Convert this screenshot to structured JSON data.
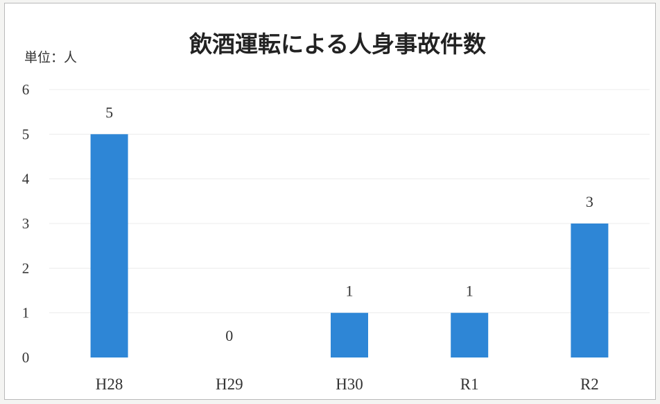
{
  "chart_data": {
    "type": "bar",
    "title": "飲酒運転による人身事故件数",
    "unit_label": "単位：人",
    "categories": [
      "H28",
      "H29",
      "H30",
      "R1",
      "R2"
    ],
    "values": [
      5,
      0,
      1,
      1,
      3
    ],
    "ylim": [
      0,
      6
    ],
    "yticks": [
      0,
      1,
      2,
      3,
      4,
      5,
      6
    ],
    "grid": true,
    "legend": "none",
    "bar_color": "#2e86d6"
  }
}
